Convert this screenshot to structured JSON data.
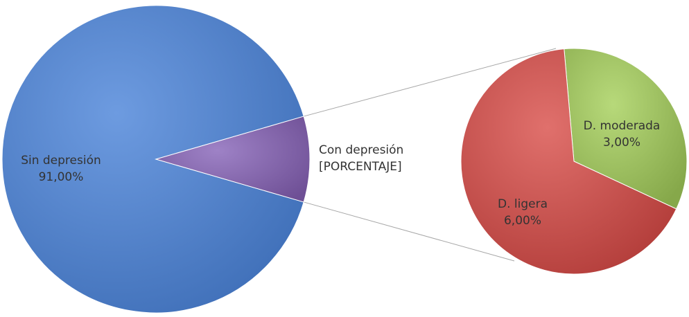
{
  "chart_data": {
    "type": "pie",
    "subtype": "pie-of-pie",
    "title": "",
    "legend": "none",
    "main_pie": {
      "slices": [
        {
          "label": "Sin depresión",
          "value": 91.0,
          "value_label": "91,00%",
          "color": "#4F81BD"
        },
        {
          "label": "Con depresión",
          "value": 9.0,
          "value_label": "[PORCENTAJE]",
          "color": "#8064A2"
        }
      ]
    },
    "secondary_pie": {
      "slices": [
        {
          "label": "D. ligera",
          "value": 6.0,
          "value_label": "6,00%",
          "color": "#C0504D"
        },
        {
          "label": "D. moderada",
          "value": 3.0,
          "value_label": "3,00%",
          "color": "#9BBB59"
        }
      ]
    },
    "connector_color": "#A6A6A6"
  }
}
